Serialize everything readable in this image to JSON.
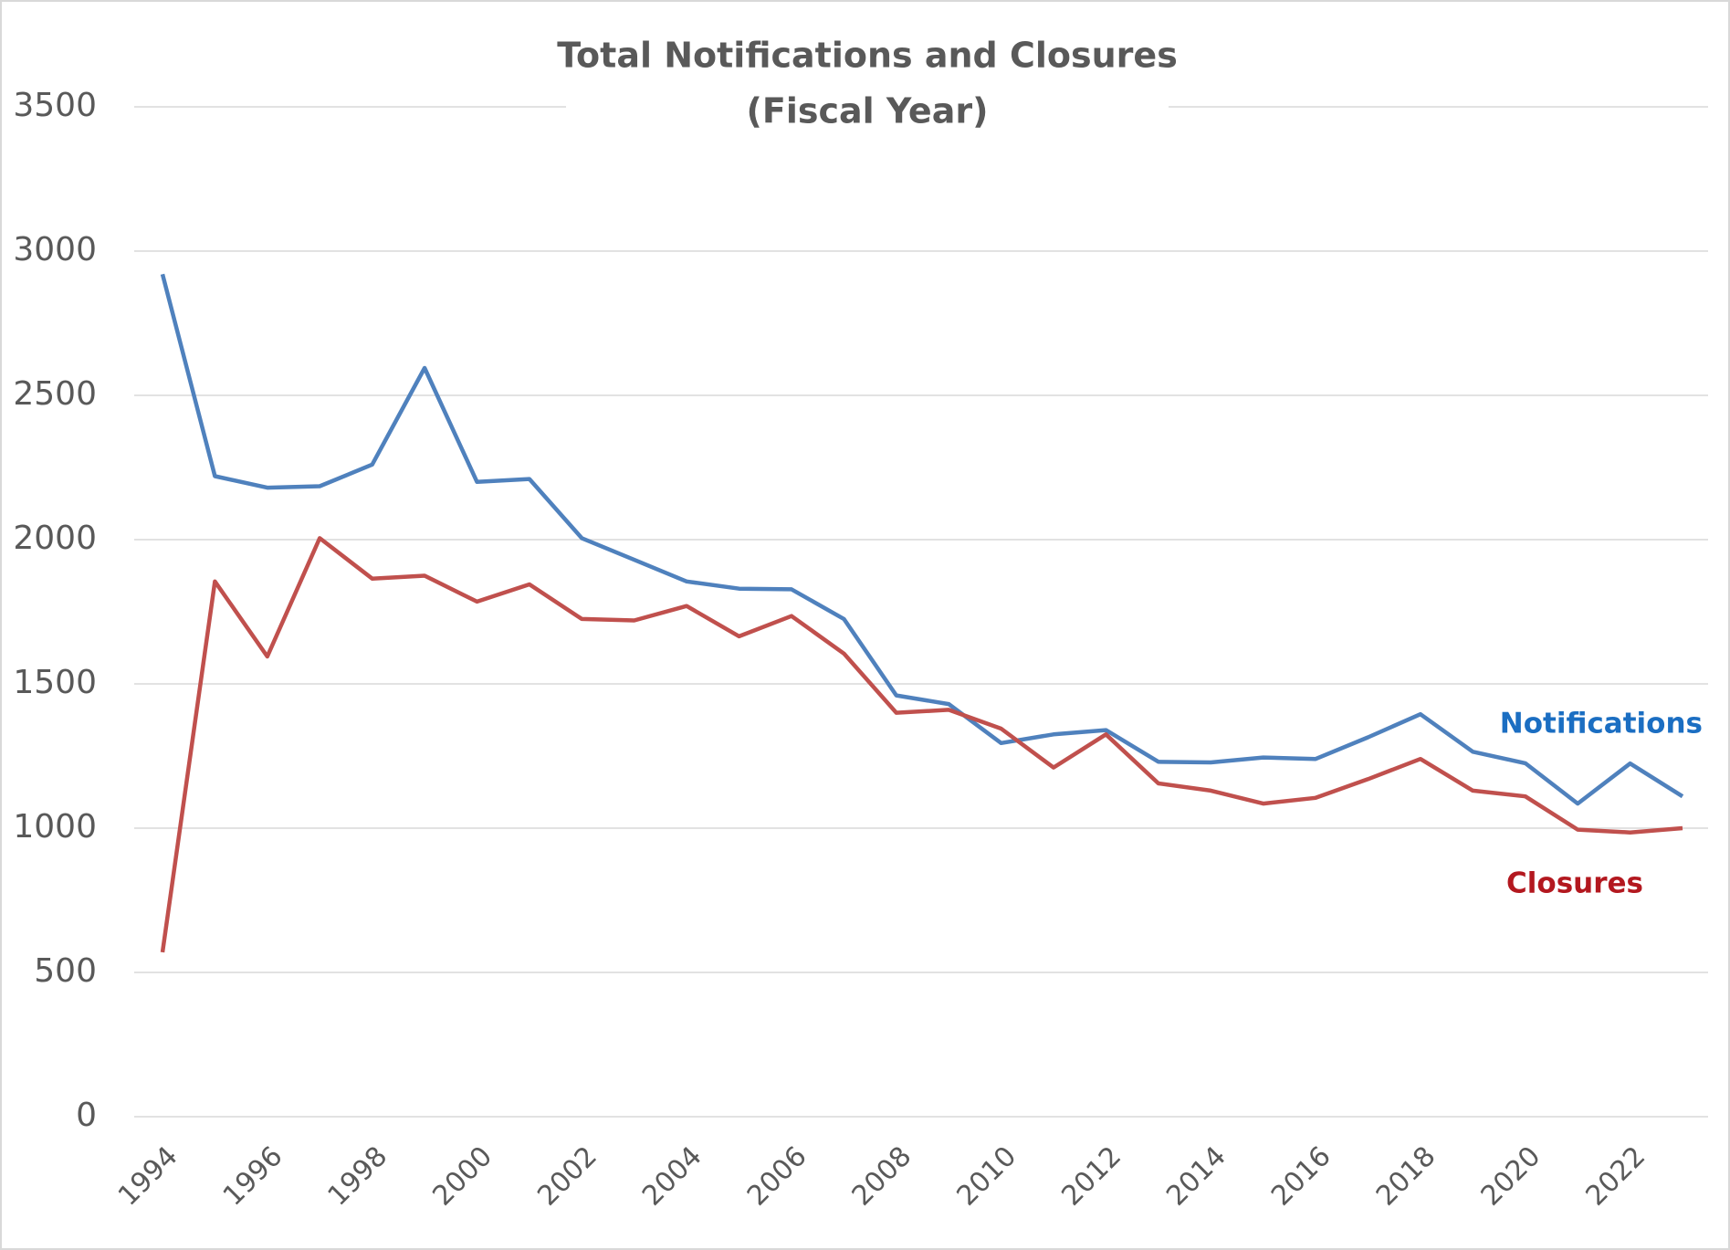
{
  "chart_data": {
    "type": "line",
    "title": "Total Notifications and Closures",
    "subtitle": "(Fiscal Year)",
    "categories": [
      1994,
      null,
      1996,
      null,
      1998,
      null,
      2000,
      null,
      2002,
      null,
      2004,
      null,
      2006,
      null,
      2008,
      null,
      2010,
      null,
      2012,
      null,
      2014,
      null,
      2016,
      null,
      2018,
      null,
      2020,
      null,
      2022,
      null
    ],
    "series": [
      {
        "name": "Notifications",
        "color": "#4f81bd",
        "label_color": "#1b6ec2",
        "values": [
          2920,
          2220,
          2180,
          2185,
          2260,
          2595,
          2200,
          2210,
          2005,
          1930,
          1855,
          1830,
          1828,
          1725,
          1460,
          1430,
          1295,
          1325,
          1340,
          1230,
          1228,
          1245,
          1240,
          1315,
          1395,
          1265,
          1225,
          1085,
          1224,
          1110
        ]
      },
      {
        "name": "Closures",
        "color": "#c0504d",
        "label_color": "#b3181f",
        "values": [
          570,
          1855,
          1595,
          2005,
          1865,
          1875,
          1785,
          1845,
          1725,
          1720,
          1770,
          1665,
          1735,
          1605,
          1400,
          1410,
          1345,
          1210,
          1325,
          1155,
          1130,
          1085,
          1105,
          1170,
          1240,
          1130,
          1110,
          995,
          985,
          1000
        ]
      }
    ],
    "ylim": [
      0,
      3500
    ],
    "yticks": [
      0,
      500,
      1000,
      1500,
      2000,
      2500,
      3000,
      3500
    ],
    "grid": true
  }
}
